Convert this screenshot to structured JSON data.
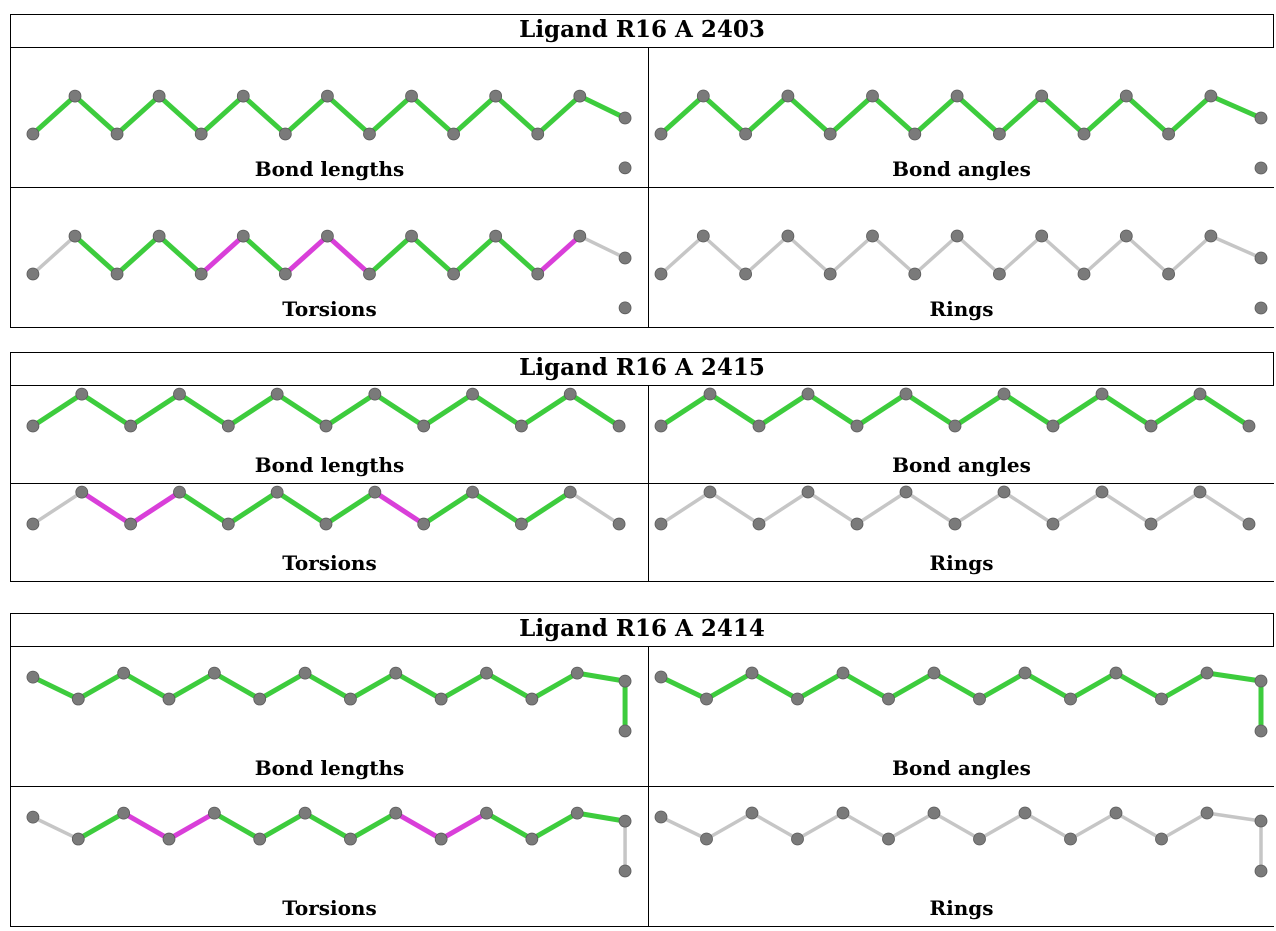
{
  "colors": {
    "green": "#3dcc3d",
    "magenta": "#d93fd9",
    "grey": "#c6c6c6",
    "atom": "#7a7a7a"
  },
  "ligands": [
    {
      "title": "Ligand R16 A 2403",
      "shape": "hook",
      "panels": [
        {
          "label": "Bond lengths",
          "bond_colors": [
            "green",
            "green",
            "green",
            "green",
            "green",
            "green",
            "green",
            "green",
            "green",
            "green",
            "green",
            "green",
            "green",
            "green"
          ]
        },
        {
          "label": "Bond angles",
          "bond_colors": [
            "green",
            "green",
            "green",
            "green",
            "green",
            "green",
            "green",
            "green",
            "green",
            "green",
            "green",
            "green",
            "green",
            "green"
          ]
        },
        {
          "label": "Torsions",
          "bond_colors": [
            "grey",
            "green",
            "green",
            "green",
            "magenta",
            "green",
            "magenta",
            "magenta",
            "green",
            "green",
            "green",
            "green",
            "magenta",
            "grey"
          ]
        },
        {
          "label": "Rings",
          "bond_colors": [
            "grey",
            "grey",
            "grey",
            "grey",
            "grey",
            "grey",
            "grey",
            "grey",
            "grey",
            "grey",
            "grey",
            "grey",
            "grey",
            "grey"
          ]
        }
      ]
    },
    {
      "title": "Ligand R16 A 2415",
      "shape": "zigzag",
      "panels": [
        {
          "label": "Bond lengths",
          "bond_colors": [
            "green",
            "green",
            "green",
            "green",
            "green",
            "green",
            "green",
            "green",
            "green",
            "green",
            "green",
            "green"
          ]
        },
        {
          "label": "Bond angles",
          "bond_colors": [
            "green",
            "green",
            "green",
            "green",
            "green",
            "green",
            "green",
            "green",
            "green",
            "green",
            "green",
            "green"
          ]
        },
        {
          "label": "Torsions",
          "bond_colors": [
            "grey",
            "magenta",
            "magenta",
            "green",
            "green",
            "green",
            "green",
            "magenta",
            "green",
            "green",
            "green",
            "grey"
          ]
        },
        {
          "label": "Rings",
          "bond_colors": [
            "grey",
            "grey",
            "grey",
            "grey",
            "grey",
            "grey",
            "grey",
            "grey",
            "grey",
            "grey",
            "grey",
            "grey"
          ]
        }
      ]
    },
    {
      "title": "Ligand R16 A 2414",
      "shape": "hook-down",
      "panels": [
        {
          "label": "Bond lengths",
          "bond_colors": [
            "green",
            "green",
            "green",
            "green",
            "green",
            "green",
            "green",
            "green",
            "green",
            "green",
            "green",
            "green",
            "green",
            "green"
          ]
        },
        {
          "label": "Bond angles",
          "bond_colors": [
            "green",
            "green",
            "green",
            "green",
            "green",
            "green",
            "green",
            "green",
            "green",
            "green",
            "green",
            "green",
            "green",
            "green"
          ]
        },
        {
          "label": "Torsions",
          "bond_colors": [
            "grey",
            "green",
            "magenta",
            "magenta",
            "green",
            "green",
            "green",
            "green",
            "magenta",
            "magenta",
            "green",
            "green",
            "green",
            "grey"
          ]
        },
        {
          "label": "Rings",
          "bond_colors": [
            "grey",
            "grey",
            "grey",
            "grey",
            "grey",
            "grey",
            "grey",
            "grey",
            "grey",
            "grey",
            "grey",
            "grey",
            "grey",
            "grey"
          ]
        }
      ]
    }
  ]
}
